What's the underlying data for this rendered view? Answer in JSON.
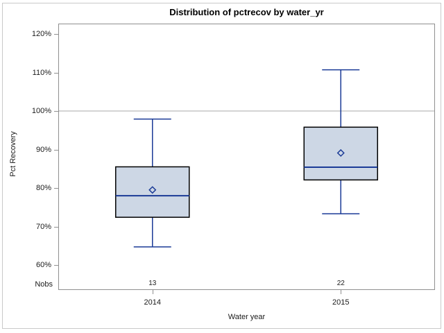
{
  "chart_data": {
    "type": "boxplot",
    "title": "Distribution of pctrecov by water_yr",
    "xlabel": "Water year",
    "ylabel": "Pct Recovery",
    "nobs_label": "Nobs",
    "yticks": [
      {
        "value": 120,
        "label": "120%"
      },
      {
        "value": 110,
        "label": "110%"
      },
      {
        "value": 100,
        "label": "100%"
      },
      {
        "value": 90,
        "label": "90%"
      },
      {
        "value": 80,
        "label": "80%"
      },
      {
        "value": 70,
        "label": "70%"
      },
      {
        "value": 60,
        "label": "60%"
      }
    ],
    "reference_line": 100,
    "groups": [
      {
        "label": "2014",
        "nobs": "13",
        "whisker_low": 64.7,
        "q1": 72.4,
        "median": 78.0,
        "mean": 79.5,
        "q3": 85.5,
        "whisker_high": 97.9
      },
      {
        "label": "2015",
        "nobs": "22",
        "whisker_low": 73.3,
        "q1": 82.1,
        "median": 85.4,
        "mean": 89.1,
        "q3": 95.8,
        "whisker_high": 110.7
      }
    ],
    "colors": {
      "box_fill": "#cdd7e5",
      "box_border": "#000000",
      "line": "#1a3a96",
      "reference": "#a9a9a9",
      "frame": "#8f8f8f"
    }
  }
}
